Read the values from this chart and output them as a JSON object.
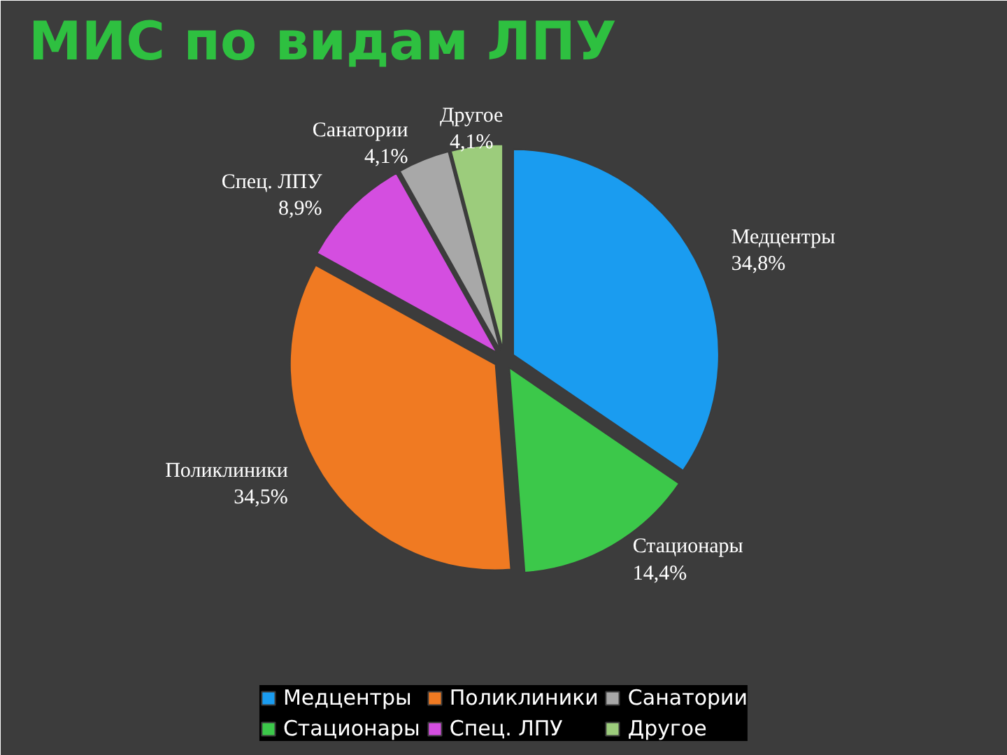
{
  "chart_data": {
    "type": "pie",
    "title": "МИС по видам ЛПУ",
    "categories": [
      "Медцентры",
      "Стационары",
      "Поликлиники",
      "Спец. ЛПУ",
      "Санатории",
      "Другое"
    ],
    "values": [
      34.8,
      14.4,
      34.5,
      8.9,
      4.1,
      4.1
    ],
    "value_labels": [
      "34,8%",
      "14,4%",
      "34,5%",
      "8,9%",
      "4,1%",
      "4,1%"
    ],
    "colors": [
      "#1a9cf0",
      "#3cc84a",
      "#f07a22",
      "#d44ee0",
      "#a8a8a8",
      "#9ccc7c"
    ],
    "legend": "bottom"
  }
}
